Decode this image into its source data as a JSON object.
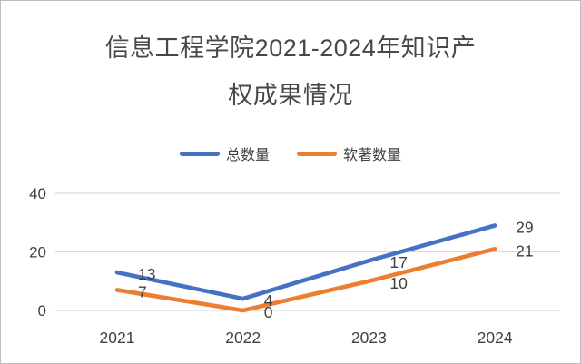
{
  "title": {
    "line1": "信息工程学院2021-2024年知识产",
    "line2": "权成果情况"
  },
  "legend": [
    {
      "label": "总数量",
      "color": "#4472C4"
    },
    {
      "label": "软著数量",
      "color": "#ED7D31"
    }
  ],
  "chart_data": {
    "type": "line",
    "title": "信息工程学院2021-2024年知识产权成果情况",
    "categories": [
      "2021",
      "2022",
      "2023",
      "2024"
    ],
    "series": [
      {
        "name": "总数量",
        "color": "#4472C4",
        "values": [
          13,
          4,
          17,
          29
        ]
      },
      {
        "name": "软著数量",
        "color": "#ED7D31",
        "values": [
          7,
          0,
          10,
          21
        ]
      }
    ],
    "y_ticks": [
      0,
      20,
      40
    ],
    "ylim": [
      0,
      40
    ],
    "xlabel": "",
    "ylabel": "",
    "grid": true,
    "gridline_color": "#d9d9d9",
    "legend_position": "top",
    "data_labels": true,
    "label_color": "#404040"
  }
}
